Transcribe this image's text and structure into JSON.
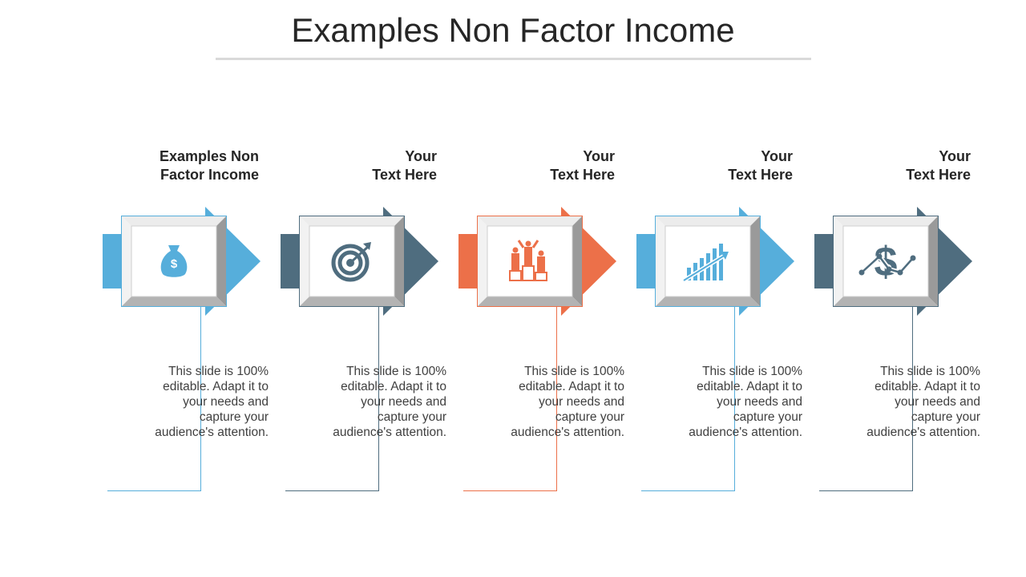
{
  "title": "Examples Non Factor Income",
  "steps": [
    {
      "heading_line1": "Examples Non",
      "heading_line2": "Factor Income",
      "desc": [
        "This slide is 100%",
        "editable. Adapt it to",
        "your needs and",
        "capture your",
        "audience's attention."
      ],
      "color": "#56aedb",
      "icon": "money-bag-icon"
    },
    {
      "heading_line1": "Your",
      "heading_line2": "Text Here",
      "desc": [
        "This slide is 100%",
        "editable. Adapt it to",
        "your needs and",
        "capture your",
        "audience's attention."
      ],
      "color": "#4f6d7f",
      "icon": "target-icon"
    },
    {
      "heading_line1": "Your",
      "heading_line2": "Text Here",
      "desc": [
        "This slide is 100%",
        "editable. Adapt it to",
        "your needs and",
        "capture your",
        "audience's attention."
      ],
      "color": "#ec7049",
      "icon": "team-podium-icon"
    },
    {
      "heading_line1": "Your",
      "heading_line2": "Text Here",
      "desc": [
        "This slide is 100%",
        "editable. Adapt it to",
        "your needs and",
        "capture your",
        "audience's attention."
      ],
      "color": "#56aedb",
      "icon": "growth-chart-icon"
    },
    {
      "heading_line1": "Your",
      "heading_line2": "Text Here",
      "desc": [
        "This slide is 100%",
        "editable. Adapt it to",
        "your needs and",
        "capture your",
        "audience's attention."
      ],
      "color": "#4f6d7f",
      "icon": "dollar-trend-icon"
    }
  ]
}
